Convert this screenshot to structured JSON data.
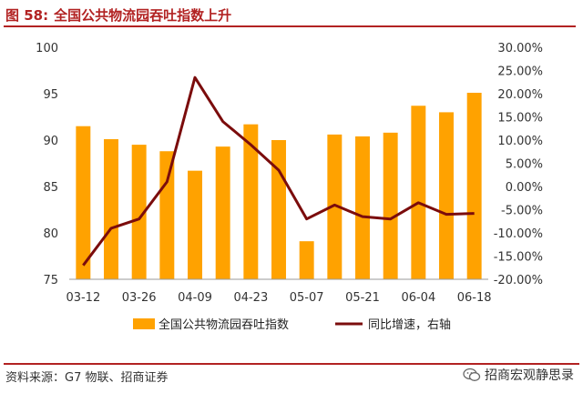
{
  "figure": {
    "label": "图 58:",
    "title": "全国公共物流园吞吐指数上升"
  },
  "colors": {
    "bar": "#FFA200",
    "line": "#7B0C0C",
    "accent": "#B22222"
  },
  "chart_data": {
    "type": "bar+line",
    "x_tick_labels": [
      "03-12",
      "03-26",
      "04-09",
      "04-23",
      "05-07",
      "05-21",
      "06-04",
      "06-18"
    ],
    "categories": [
      "03-12",
      "03-19",
      "03-26",
      "04-02",
      "04-09",
      "04-16",
      "04-23",
      "04-30",
      "05-07",
      "05-14",
      "05-21",
      "05-28",
      "06-04",
      "06-11",
      "06-18"
    ],
    "series": [
      {
        "name": "全国公共物流园吞吐指数",
        "type": "bar",
        "axis": "left",
        "values": [
          91.5,
          90.1,
          89.5,
          88.8,
          86.7,
          89.3,
          91.7,
          90.0,
          79.1,
          90.6,
          90.4,
          90.8,
          93.7,
          93.0,
          95.1
        ]
      },
      {
        "name": "同比增速，右轴",
        "type": "line",
        "axis": "right",
        "values": [
          -17.0,
          -9.0,
          -7.0,
          1.0,
          23.5,
          14.0,
          9.0,
          3.5,
          -7.0,
          -4.0,
          -6.5,
          -7.0,
          -3.5,
          -6.0,
          -5.8
        ]
      }
    ],
    "left_axis": {
      "min": 75,
      "max": 100,
      "ticks": [
        75,
        80,
        85,
        90,
        95,
        100
      ]
    },
    "right_axis": {
      "min": -20,
      "max": 30,
      "ticks": [
        -20,
        -15,
        -10,
        -5,
        0,
        5,
        10,
        15,
        20,
        25,
        30
      ],
      "tick_labels": [
        "-20.00%",
        "-15.00%",
        "-10.00%",
        "-5.00%",
        "0.00%",
        "5.00%",
        "10.00%",
        "15.00%",
        "20.00%",
        "25.00%",
        "30.00%"
      ]
    },
    "legend_position": "bottom"
  },
  "footer": {
    "source": "资料来源：G7 物联、招商证券",
    "watermark": "招商宏观静思录"
  }
}
